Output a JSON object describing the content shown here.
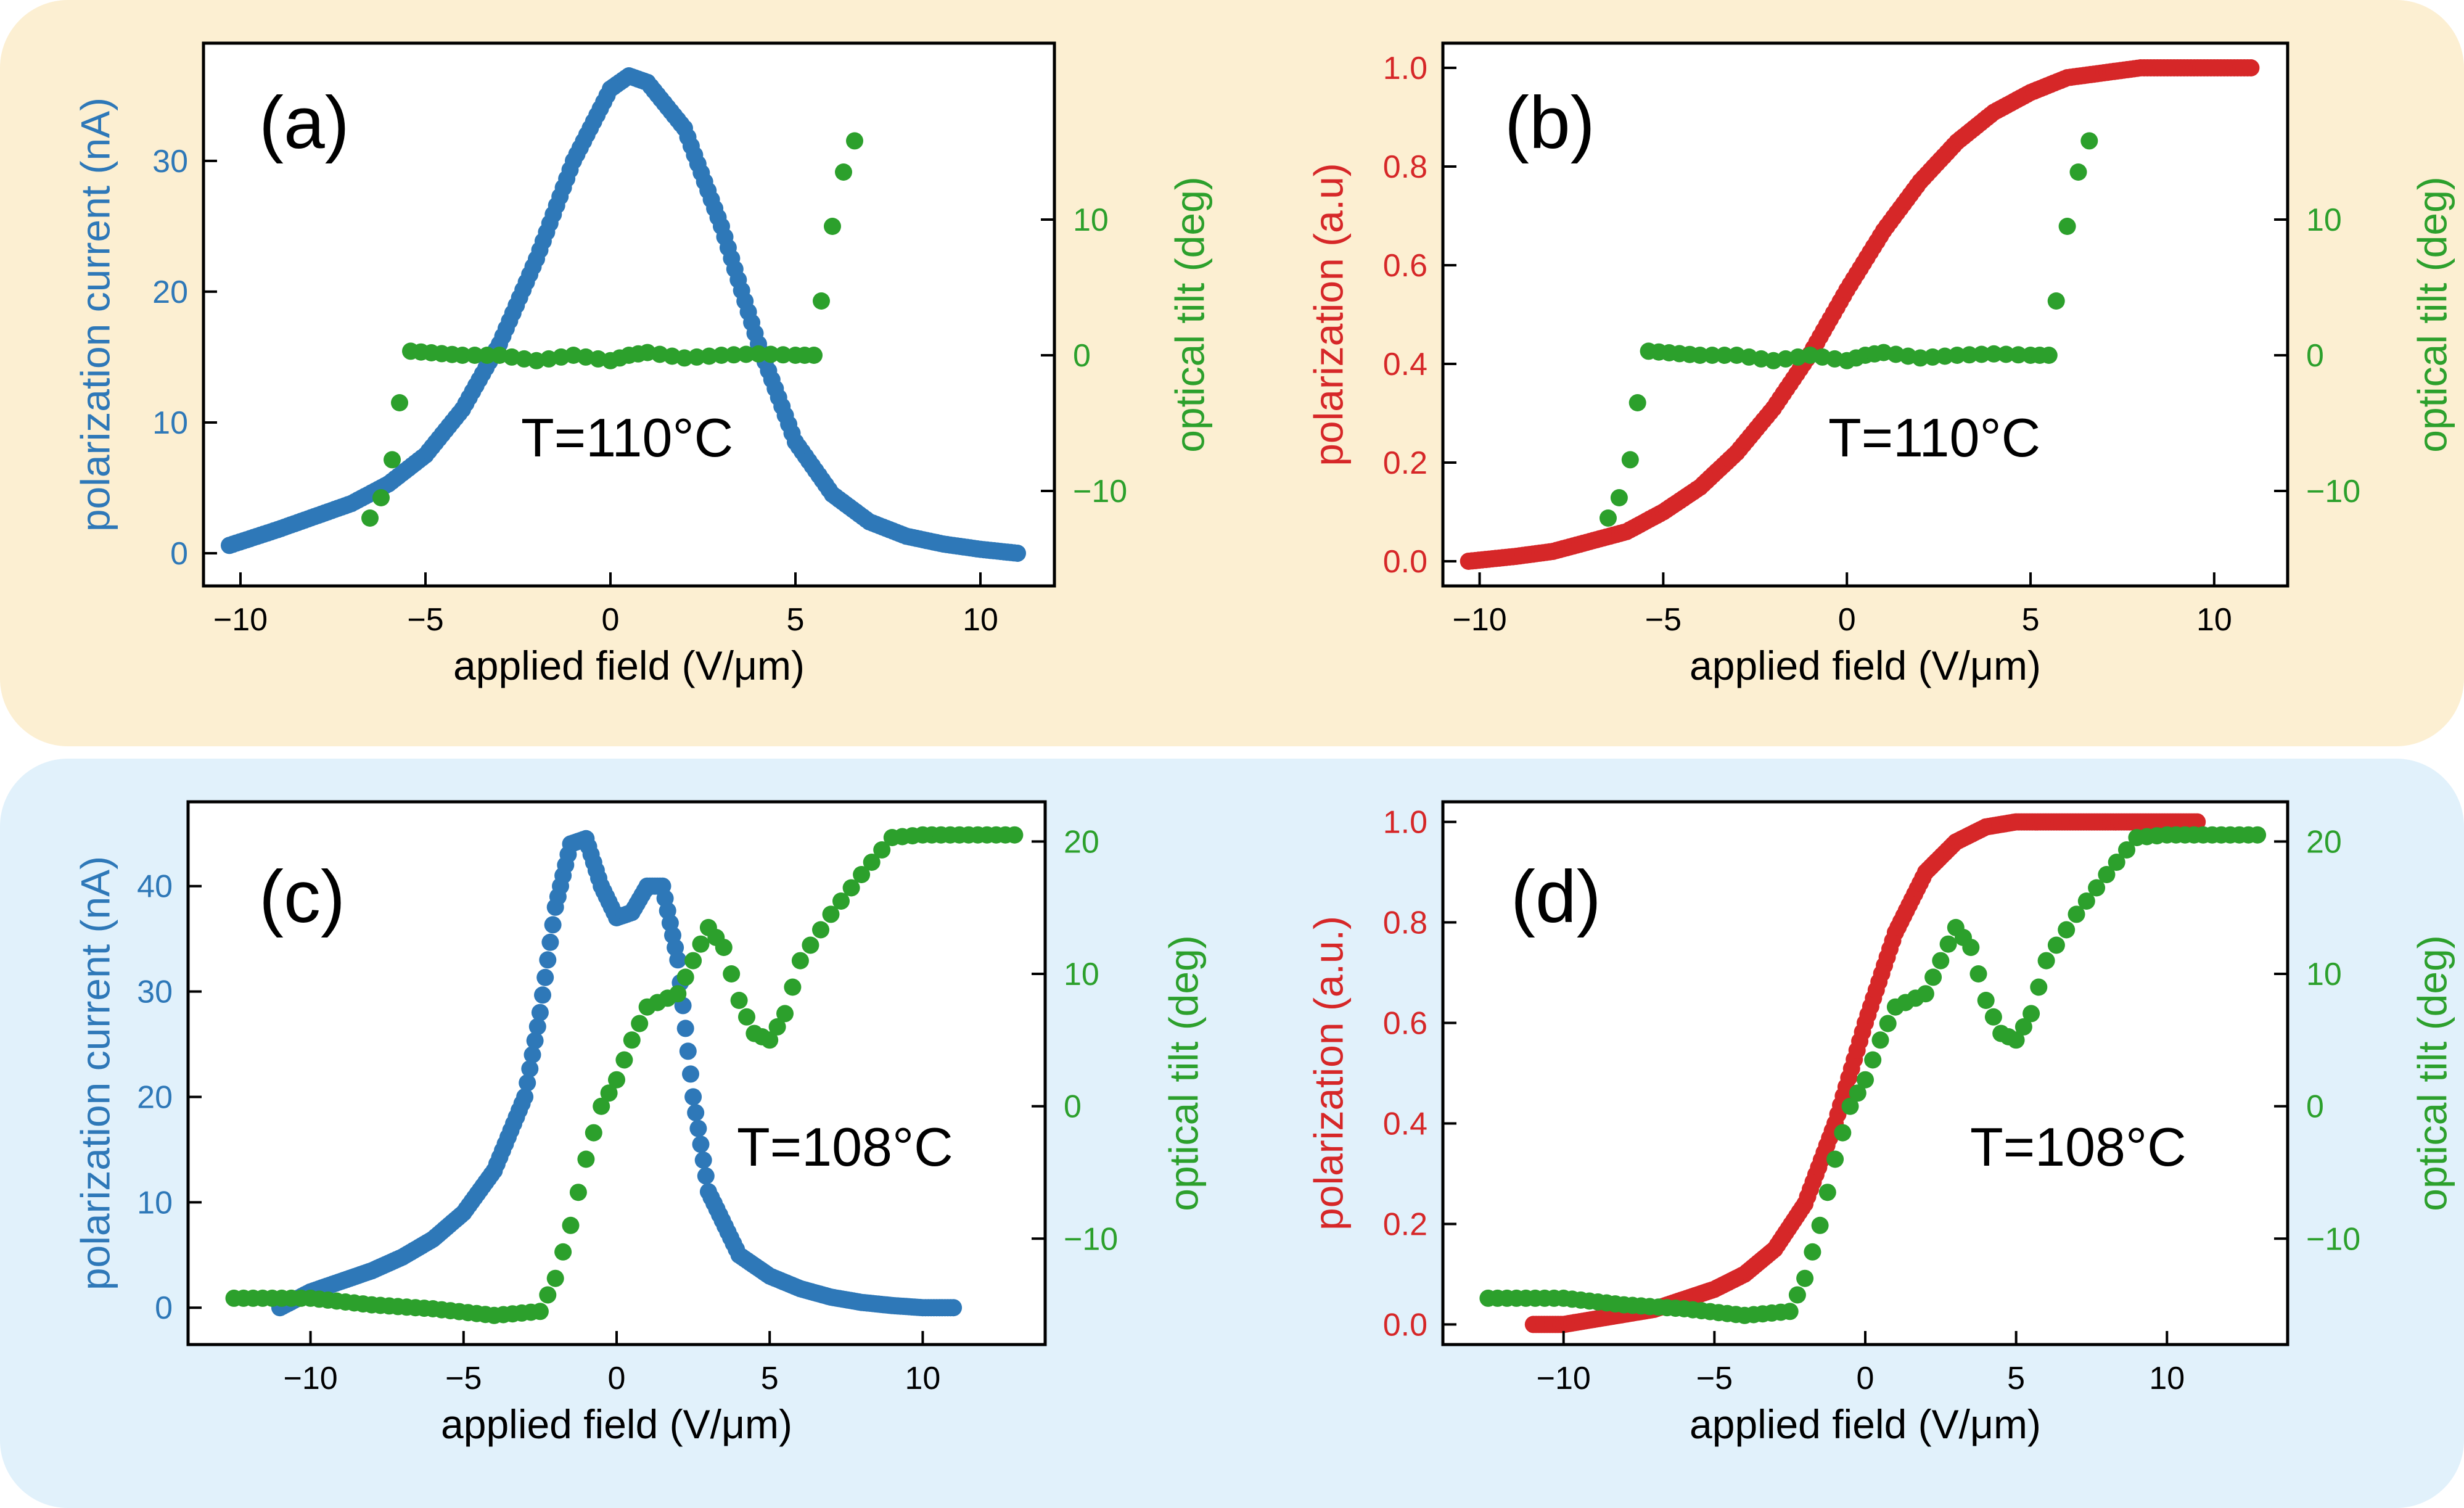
{
  "colors": {
    "top_panel_bg": "#FCEFD2",
    "bottom_panel_bg": "#E1F1FB",
    "current": "#2E78B8",
    "polarization": "#D62728",
    "tilt": "#2CA02C",
    "text": "#000000"
  },
  "chart_data": [
    {
      "id": "a",
      "type": "scatter",
      "panel_label": "(a)",
      "annotation": "T=110°C",
      "xlabel": "applied field (V/μm)",
      "ylabel": "polarization current (nA)",
      "y2label": "optical tilt (deg)",
      "xlim": [
        -11,
        12
      ],
      "ylim": [
        -2.5,
        39
      ],
      "y2lim": [
        -17,
        23
      ],
      "xticks": [
        -10,
        -5,
        0,
        5,
        10
      ],
      "yticks": [
        0,
        10,
        20,
        30
      ],
      "y2ticks": [
        -10,
        0,
        10
      ],
      "xtick_labels": [
        "−10",
        "−5",
        "0",
        "5",
        "10"
      ],
      "ytick_labels": [
        "0",
        "10",
        "20",
        "30"
      ],
      "y2tick_labels": [
        "−10",
        "0",
        "10"
      ],
      "series": [
        {
          "axis": "left",
          "color": "#2E78B8",
          "points": [
            [
              -10.3,
              0.6
            ],
            [
              -9,
              1.8
            ],
            [
              -8,
              2.8
            ],
            [
              -7,
              3.8
            ],
            [
              -6,
              5.3
            ],
            [
              -5,
              7.5
            ],
            [
              -4,
              11
            ],
            [
              -3,
              16
            ],
            [
              -2,
              22.5
            ],
            [
              -1,
              30
            ],
            [
              0,
              35.5
            ],
            [
              0.5,
              36.5
            ],
            [
              1,
              36
            ],
            [
              2,
              32.5
            ],
            [
              3,
              25
            ],
            [
              4,
              16
            ],
            [
              5,
              8.5
            ],
            [
              6,
              4.5
            ],
            [
              7,
              2.4
            ],
            [
              8,
              1.3
            ],
            [
              9,
              0.7
            ],
            [
              10,
              0.3
            ],
            [
              11,
              0
            ]
          ]
        },
        {
          "axis": "right",
          "color": "#2CA02C",
          "points": [
            [
              -6.5,
              -12
            ],
            [
              -6.2,
              -10.5
            ],
            [
              -5.9,
              -7.7
            ],
            [
              -5.7,
              -3.5
            ],
            [
              -5.4,
              0.3
            ],
            [
              -4,
              0
            ],
            [
              -3,
              0
            ],
            [
              -2,
              -0.4
            ],
            [
              -1,
              0
            ],
            [
              0,
              -0.4
            ],
            [
              0.5,
              0
            ],
            [
              1,
              0.2
            ],
            [
              2,
              -0.2
            ],
            [
              3,
              0
            ],
            [
              4,
              0.1
            ],
            [
              5,
              0
            ],
            [
              5.5,
              0
            ],
            [
              5.7,
              4
            ],
            [
              6,
              9.5
            ],
            [
              6.3,
              13.5
            ],
            [
              6.6,
              15.8
            ]
          ]
        }
      ]
    },
    {
      "id": "b",
      "type": "scatter",
      "panel_label": "(b)",
      "annotation": "T=110°C",
      "xlabel": "applied field (V/μm)",
      "ylabel": "polarization (a.u)",
      "y2label": "optical tilt (deg)",
      "xlim": [
        -11,
        12
      ],
      "ylim": [
        -0.05,
        1.05
      ],
      "y2lim": [
        -17,
        23
      ],
      "xticks": [
        -10,
        -5,
        0,
        5,
        10
      ],
      "yticks": [
        0,
        0.2,
        0.4,
        0.6,
        0.8,
        1.0
      ],
      "y2ticks": [
        -10,
        0,
        10
      ],
      "xtick_labels": [
        "−10",
        "−5",
        "0",
        "5",
        "10"
      ],
      "ytick_labels": [
        "0.0",
        "0.2",
        "0.4",
        "0.6",
        "0.8",
        "1.0"
      ],
      "y2tick_labels": [
        "−10",
        "0",
        "10"
      ],
      "series": [
        {
          "axis": "left",
          "color": "#D62728",
          "points": [
            [
              -10.3,
              0
            ],
            [
              -9,
              0.01
            ],
            [
              -8,
              0.02
            ],
            [
              -7,
              0.04
            ],
            [
              -6,
              0.06
            ],
            [
              -5,
              0.1
            ],
            [
              -4,
              0.15
            ],
            [
              -3,
              0.22
            ],
            [
              -2,
              0.31
            ],
            [
              -1,
              0.42
            ],
            [
              0,
              0.55
            ],
            [
              1,
              0.67
            ],
            [
              2,
              0.77
            ],
            [
              3,
              0.85
            ],
            [
              4,
              0.91
            ],
            [
              5,
              0.95
            ],
            [
              6,
              0.98
            ],
            [
              7,
              0.99
            ],
            [
              8,
              1.0
            ],
            [
              11,
              1.0
            ]
          ]
        },
        {
          "axis": "right",
          "color": "#2CA02C",
          "points": [
            [
              -6.5,
              -12
            ],
            [
              -6.2,
              -10.5
            ],
            [
              -5.9,
              -7.7
            ],
            [
              -5.7,
              -3.5
            ],
            [
              -5.4,
              0.3
            ],
            [
              -4,
              0
            ],
            [
              -3,
              0
            ],
            [
              -2,
              -0.4
            ],
            [
              -1,
              0
            ],
            [
              0,
              -0.4
            ],
            [
              0.5,
              0
            ],
            [
              1,
              0.2
            ],
            [
              2,
              -0.2
            ],
            [
              3,
              0
            ],
            [
              4,
              0.1
            ],
            [
              5,
              0
            ],
            [
              5.5,
              0
            ],
            [
              5.7,
              4
            ],
            [
              6,
              9.5
            ],
            [
              6.3,
              13.5
            ],
            [
              6.6,
              15.8
            ]
          ]
        }
      ]
    },
    {
      "id": "c",
      "type": "scatter",
      "panel_label": "(c)",
      "annotation": "T=108°C",
      "xlabel": "applied field (V/μm)",
      "ylabel": "polarization current (nA)",
      "y2label": "optical tilt (deg)",
      "xlim": [
        -14,
        14
      ],
      "ylim": [
        -3.5,
        48
      ],
      "y2lim": [
        -18,
        23
      ],
      "xticks": [
        -10,
        -5,
        0,
        5,
        10
      ],
      "yticks": [
        0,
        10,
        20,
        30,
        40
      ],
      "y2ticks": [
        -10,
        0,
        10,
        20
      ],
      "xtick_labels": [
        "−10",
        "−5",
        "0",
        "5",
        "10"
      ],
      "ytick_labels": [
        "0",
        "10",
        "20",
        "30",
        "40"
      ],
      "y2tick_labels": [
        "−10",
        "0",
        "10",
        "20"
      ],
      "series": [
        {
          "axis": "left",
          "color": "#2E78B8",
          "points": [
            [
              -11,
              0
            ],
            [
              -10,
              1.5
            ],
            [
              -9,
              2.5
            ],
            [
              -8,
              3.5
            ],
            [
              -7,
              4.8
            ],
            [
              -6,
              6.5
            ],
            [
              -5,
              9
            ],
            [
              -4,
              13
            ],
            [
              -3,
              20
            ],
            [
              -2.5,
              28
            ],
            [
              -2,
              38
            ],
            [
              -1.5,
              44
            ],
            [
              -1,
              44.5
            ],
            [
              -0.5,
              40
            ],
            [
              0,
              37
            ],
            [
              0.5,
              37.5
            ],
            [
              1,
              40
            ],
            [
              1.5,
              40
            ],
            [
              2,
              33
            ],
            [
              2.5,
              20
            ],
            [
              3,
              11
            ],
            [
              4,
              5
            ],
            [
              5,
              3
            ],
            [
              6,
              1.8
            ],
            [
              7,
              1
            ],
            [
              8,
              0.5
            ],
            [
              9,
              0.2
            ],
            [
              10,
              0
            ],
            [
              11,
              0
            ]
          ]
        },
        {
          "axis": "right",
          "color": "#2CA02C",
          "points": [
            [
              -12.5,
              -14.5
            ],
            [
              -10,
              -14.5
            ],
            [
              -8,
              -15
            ],
            [
              -6,
              -15.3
            ],
            [
              -4,
              -15.8
            ],
            [
              -2.5,
              -15.5
            ],
            [
              -2,
              -13
            ],
            [
              -1.5,
              -9
            ],
            [
              -1,
              -4
            ],
            [
              -0.5,
              0
            ],
            [
              0,
              2
            ],
            [
              0.5,
              5
            ],
            [
              1,
              7.5
            ],
            [
              2,
              8.5
            ],
            [
              2.5,
              11
            ],
            [
              3,
              13.5
            ],
            [
              3.5,
              12
            ],
            [
              4,
              8
            ],
            [
              4.5,
              5.5
            ],
            [
              5,
              5
            ],
            [
              5.5,
              7
            ],
            [
              6,
              11
            ],
            [
              7,
              14.5
            ],
            [
              8,
              17.5
            ],
            [
              9,
              20.3
            ],
            [
              10,
              20.5
            ],
            [
              13,
              20.5
            ]
          ]
        }
      ]
    },
    {
      "id": "d",
      "type": "scatter",
      "panel_label": "(d)",
      "annotation": "T=108°C",
      "xlabel": "applied field (V/μm)",
      "ylabel": "polarization (a.u.)",
      "y2label": "optical tilt (deg)",
      "xlim": [
        -14,
        14
      ],
      "ylim": [
        -0.04,
        1.04
      ],
      "y2lim": [
        -18,
        23
      ],
      "xticks": [
        -10,
        -5,
        0,
        5,
        10
      ],
      "yticks": [
        0,
        0.2,
        0.4,
        0.6,
        0.8,
        1.0
      ],
      "y2ticks": [
        -10,
        0,
        10,
        20
      ],
      "xtick_labels": [
        "−10",
        "−5",
        "0",
        "5",
        "10"
      ],
      "ytick_labels": [
        "0.0",
        "0.2",
        "0.4",
        "0.6",
        "0.8",
        "1.0"
      ],
      "y2tick_labels": [
        "−10",
        "0",
        "10",
        "20"
      ],
      "series": [
        {
          "axis": "left",
          "color": "#D62728",
          "points": [
            [
              -11,
              0
            ],
            [
              -10,
              0
            ],
            [
              -9,
              0.01
            ],
            [
              -8,
              0.02
            ],
            [
              -7,
              0.03
            ],
            [
              -6,
              0.05
            ],
            [
              -5,
              0.07
            ],
            [
              -4,
              0.1
            ],
            [
              -3,
              0.15
            ],
            [
              -2,
              0.24
            ],
            [
              -1,
              0.4
            ],
            [
              0,
              0.6
            ],
            [
              1,
              0.78
            ],
            [
              2,
              0.9
            ],
            [
              3,
              0.96
            ],
            [
              4,
              0.99
            ],
            [
              5,
              1.0
            ],
            [
              11,
              1.0
            ]
          ]
        },
        {
          "axis": "right",
          "color": "#2CA02C",
          "points": [
            [
              -12.5,
              -14.5
            ],
            [
              -10,
              -14.5
            ],
            [
              -8,
              -15
            ],
            [
              -6,
              -15.3
            ],
            [
              -4,
              -15.8
            ],
            [
              -2.5,
              -15.5
            ],
            [
              -2,
              -13
            ],
            [
              -1.5,
              -9
            ],
            [
              -1,
              -4
            ],
            [
              -0.5,
              0
            ],
            [
              0,
              2
            ],
            [
              0.5,
              5
            ],
            [
              1,
              7.5
            ],
            [
              2,
              8.5
            ],
            [
              2.5,
              11
            ],
            [
              3,
              13.5
            ],
            [
              3.5,
              12
            ],
            [
              4,
              8
            ],
            [
              4.5,
              5.5
            ],
            [
              5,
              5
            ],
            [
              5.5,
              7
            ],
            [
              6,
              11
            ],
            [
              7,
              14.5
            ],
            [
              8,
              17.5
            ],
            [
              9,
              20.3
            ],
            [
              10,
              20.5
            ],
            [
              13,
              20.5
            ]
          ]
        }
      ]
    }
  ]
}
